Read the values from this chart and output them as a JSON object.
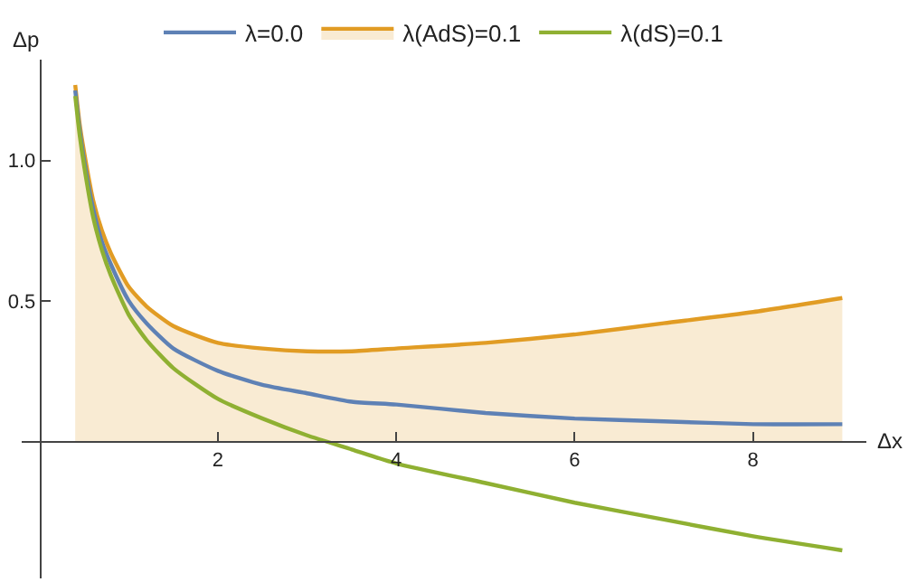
{
  "chart_data": {
    "type": "line",
    "xlabel": "Δx",
    "ylabel": "Δp",
    "x": [
      0.4,
      0.45,
      0.5,
      0.6,
      0.7,
      0.8,
      1.0,
      1.2,
      1.5,
      2,
      2.5,
      3,
      3.5,
      4,
      5,
      6,
      7,
      8,
      9
    ],
    "series": [
      {
        "name": "λ=0.0",
        "color": "#5e81b5",
        "values": [
          1.25,
          1.11,
          1.0,
          0.83,
          0.71,
          0.63,
          0.5,
          0.42,
          0.33,
          0.25,
          0.2,
          0.17,
          0.14,
          0.13,
          0.1,
          0.08,
          0.07,
          0.06,
          0.06
        ]
      },
      {
        "name": "λ(AdS)=0.1",
        "type": "area",
        "color": "#e19c24",
        "values": [
          1.27,
          1.13,
          1.03,
          0.86,
          0.75,
          0.67,
          0.55,
          0.48,
          0.41,
          0.35,
          0.33,
          0.32,
          0.32,
          0.33,
          0.35,
          0.38,
          0.42,
          0.46,
          0.51
        ]
      },
      {
        "name": "λ(dS)=0.1",
        "color": "#8fb032",
        "values": [
          1.23,
          1.09,
          0.98,
          0.8,
          0.68,
          0.59,
          0.45,
          0.36,
          0.26,
          0.15,
          0.08,
          0.02,
          -0.03,
          -0.08,
          -0.15,
          -0.22,
          -0.28,
          -0.34,
          -0.39
        ]
      }
    ],
    "xlim": [
      -0.2,
      9.27
    ],
    "ylim": [
      -0.49,
      1.36
    ],
    "xticks": [
      2,
      4,
      6,
      8
    ],
    "yticks": [
      0.5,
      {
        "value": 1,
        "label": "1.0"
      }
    ],
    "grid": false,
    "legend": "top",
    "marker": "none",
    "line_style": "solid"
  }
}
